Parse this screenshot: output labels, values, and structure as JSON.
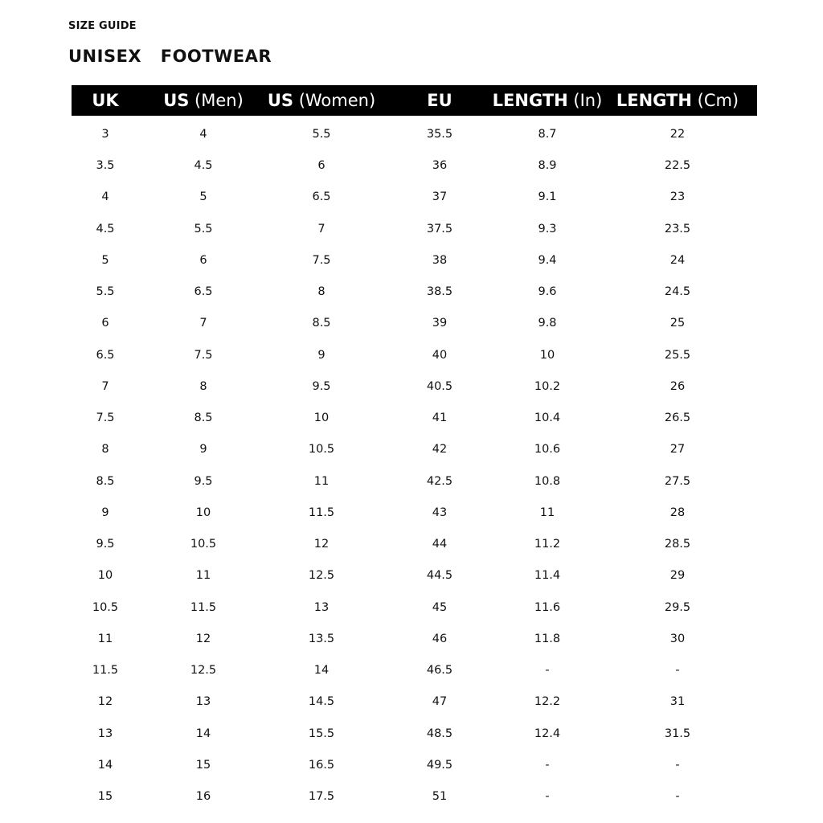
{
  "kicker": "SIZE GUIDE",
  "title": "UNISEX  FOOTWEAR",
  "colors": {
    "header_bg": "#000000",
    "header_text": "#ffffff",
    "text": "#111111"
  },
  "columns": [
    {
      "bold": "UK",
      "sub": ""
    },
    {
      "bold": "US",
      "sub": " (Men)"
    },
    {
      "bold": "US",
      "sub": " (Women)"
    },
    {
      "bold": "EU",
      "sub": ""
    },
    {
      "bold": "LENGTH",
      "sub": " (In)"
    },
    {
      "bold": "LENGTH",
      "sub": " (Cm)"
    }
  ],
  "rows": [
    [
      "3",
      "4",
      "5.5",
      "35.5",
      "8.7",
      "22"
    ],
    [
      "3.5",
      "4.5",
      "6",
      "36",
      "8.9",
      "22.5"
    ],
    [
      "4",
      "5",
      "6.5",
      "37",
      "9.1",
      "23"
    ],
    [
      "4.5",
      "5.5",
      "7",
      "37.5",
      "9.3",
      "23.5"
    ],
    [
      "5",
      "6",
      "7.5",
      "38",
      "9.4",
      "24"
    ],
    [
      "5.5",
      "6.5",
      "8",
      "38.5",
      "9.6",
      "24.5"
    ],
    [
      "6",
      "7",
      "8.5",
      "39",
      "9.8",
      "25"
    ],
    [
      "6.5",
      "7.5",
      "9",
      "40",
      "10",
      "25.5"
    ],
    [
      "7",
      "8",
      "9.5",
      "40.5",
      "10.2",
      "26"
    ],
    [
      "7.5",
      "8.5",
      "10",
      "41",
      "10.4",
      "26.5"
    ],
    [
      "8",
      "9",
      "10.5",
      "42",
      "10.6",
      "27"
    ],
    [
      "8.5",
      "9.5",
      "11",
      "42.5",
      "10.8",
      "27.5"
    ],
    [
      "9",
      "10",
      "11.5",
      "43",
      "11",
      "28"
    ],
    [
      "9.5",
      "10.5",
      "12",
      "44",
      "11.2",
      "28.5"
    ],
    [
      "10",
      "11",
      "12.5",
      "44.5",
      "11.4",
      "29"
    ],
    [
      "10.5",
      "11.5",
      "13",
      "45",
      "11.6",
      "29.5"
    ],
    [
      "11",
      "12",
      "13.5",
      "46",
      "11.8",
      "30"
    ],
    [
      "11.5",
      "12.5",
      "14",
      "46.5",
      "-",
      "-"
    ],
    [
      "12",
      "13",
      "14.5",
      "47",
      "12.2",
      "31"
    ],
    [
      "13",
      "14",
      "15.5",
      "48.5",
      "12.4",
      "31.5"
    ],
    [
      "14",
      "15",
      "16.5",
      "49.5",
      "-",
      "-"
    ],
    [
      "15",
      "16",
      "17.5",
      "51",
      "-",
      "-"
    ]
  ]
}
